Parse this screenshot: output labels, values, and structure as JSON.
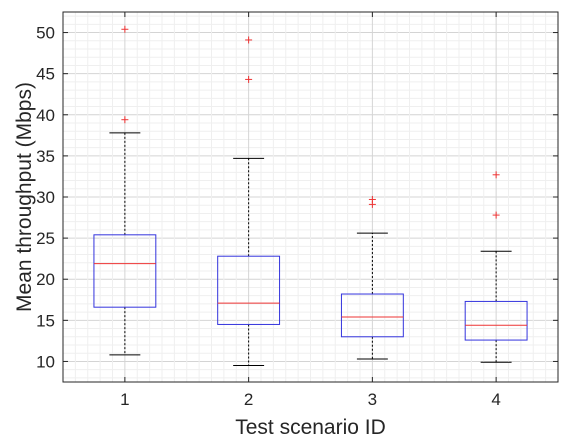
{
  "chart_data": {
    "type": "box",
    "xlabel": "Test scenario ID",
    "ylabel": "Mean throughput (Mbps)",
    "categories": [
      "1",
      "2",
      "3",
      "4"
    ],
    "ylim": [
      7.5,
      52.5
    ],
    "yticks": [
      10,
      15,
      20,
      25,
      30,
      35,
      40,
      45,
      50
    ],
    "grid": true,
    "minor_grid": true,
    "boxes": [
      {
        "category": "1",
        "whisker_low": 10.8,
        "q1": 16.6,
        "median": 21.9,
        "q3": 25.4,
        "whisker_high": 37.8,
        "outliers": [
          39.4,
          50.4
        ]
      },
      {
        "category": "2",
        "whisker_low": 9.5,
        "q1": 14.5,
        "median": 17.1,
        "q3": 22.8,
        "whisker_high": 34.7,
        "outliers": [
          44.3,
          49.1
        ]
      },
      {
        "category": "3",
        "whisker_low": 10.3,
        "q1": 13.0,
        "median": 15.4,
        "q3": 18.2,
        "whisker_high": 25.6,
        "outliers": [
          29.1,
          29.7
        ]
      },
      {
        "category": "4",
        "whisker_low": 9.9,
        "q1": 12.6,
        "median": 14.4,
        "q3": 17.3,
        "whisker_high": 23.4,
        "outliers": [
          27.8,
          32.7
        ]
      }
    ],
    "colors": {
      "box": "#3333dd",
      "median": "#ee3333",
      "outlier": "#ee3333",
      "whisker": "#000000"
    }
  }
}
